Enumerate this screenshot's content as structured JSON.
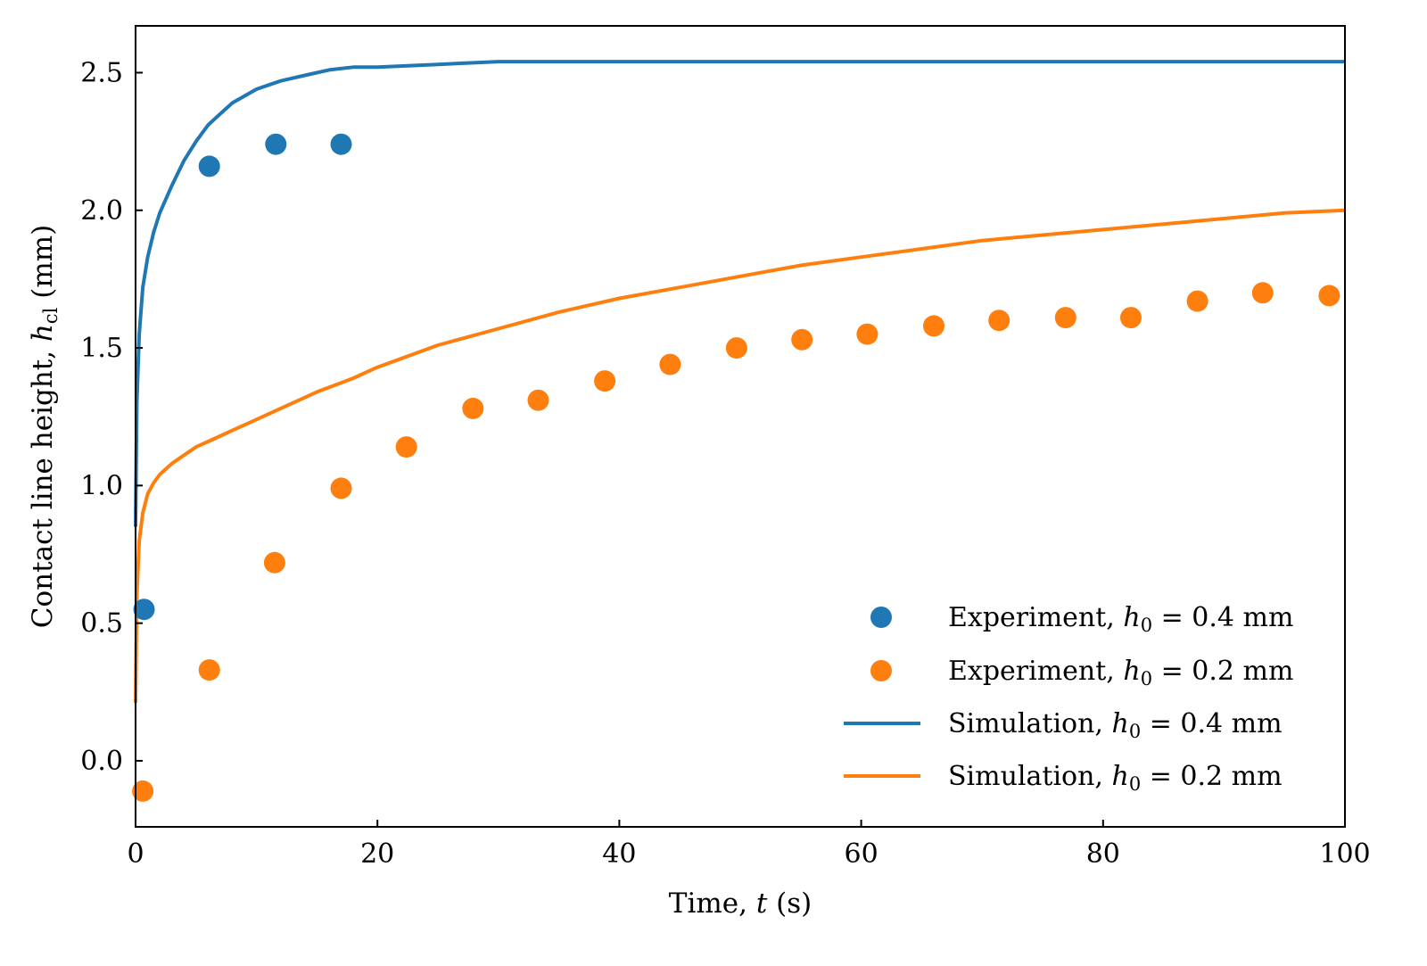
{
  "chart_data": {
    "type": "line",
    "xlabel": {
      "prefix": "Time, ",
      "var": "t",
      "suffix": " (s)"
    },
    "ylabel": {
      "prefix": "Contact line height, ",
      "var": "h",
      "sub": "cl",
      "suffix": " (mm)"
    },
    "xlim": [
      0,
      100
    ],
    "ylim": [
      -0.24,
      2.67
    ],
    "xticks": [
      0,
      20,
      40,
      60,
      80,
      100
    ],
    "xtick_labels": [
      "0",
      "20",
      "40",
      "60",
      "80",
      "100"
    ],
    "yticks": [
      0.0,
      0.5,
      1.0,
      1.5,
      2.0,
      2.5
    ],
    "ytick_labels": [
      "0.0",
      "0.5",
      "1.0",
      "1.5",
      "2.0",
      "2.5"
    ],
    "grid": false,
    "legend_position": "lower-right",
    "colors": {
      "blue": "#1f77b4",
      "orange": "#ff7f0e"
    },
    "series": [
      {
        "kind": "scatter",
        "color": "#1f77b4",
        "legend": {
          "prefix": "Experiment, ",
          "var": "h",
          "sub": "0",
          "suffix": " = 0.4 mm"
        },
        "points": [
          [
            0.7,
            0.55
          ],
          [
            6.1,
            2.16
          ],
          [
            11.6,
            2.24
          ],
          [
            17.0,
            2.24
          ]
        ]
      },
      {
        "kind": "scatter",
        "color": "#ff7f0e",
        "legend": {
          "prefix": "Experiment, ",
          "var": "h",
          "sub": "0",
          "suffix": " = 0.2 mm"
        },
        "points": [
          [
            0.6,
            -0.11
          ],
          [
            6.1,
            0.33
          ],
          [
            11.5,
            0.72
          ],
          [
            17.0,
            0.99
          ],
          [
            22.4,
            1.14
          ],
          [
            27.9,
            1.28
          ],
          [
            33.3,
            1.31
          ],
          [
            38.8,
            1.38
          ],
          [
            44.2,
            1.44
          ],
          [
            49.7,
            1.5
          ],
          [
            55.1,
            1.53
          ],
          [
            60.5,
            1.55
          ],
          [
            66.0,
            1.58
          ],
          [
            71.4,
            1.6
          ],
          [
            76.9,
            1.61
          ],
          [
            82.3,
            1.61
          ],
          [
            87.8,
            1.67
          ],
          [
            93.2,
            1.7
          ],
          [
            98.7,
            1.69
          ]
        ]
      },
      {
        "kind": "line",
        "color": "#1f77b4",
        "legend": {
          "prefix": "Simulation, ",
          "var": "h",
          "sub": "0",
          "suffix": " = 0.4 mm"
        },
        "points": [
          [
            0.0,
            0.85
          ],
          [
            0.1,
            1.3
          ],
          [
            0.3,
            1.55
          ],
          [
            0.6,
            1.72
          ],
          [
            1.0,
            1.83
          ],
          [
            1.5,
            1.92
          ],
          [
            2.0,
            1.99
          ],
          [
            3.0,
            2.09
          ],
          [
            4.0,
            2.18
          ],
          [
            5.0,
            2.25
          ],
          [
            6.0,
            2.31
          ],
          [
            7.0,
            2.35
          ],
          [
            8.0,
            2.39
          ],
          [
            10.0,
            2.44
          ],
          [
            12.0,
            2.47
          ],
          [
            14.0,
            2.49
          ],
          [
            16.0,
            2.51
          ],
          [
            18.0,
            2.52
          ],
          [
            20.0,
            2.52
          ],
          [
            25.0,
            2.53
          ],
          [
            30.0,
            2.54
          ],
          [
            40.0,
            2.54
          ],
          [
            60.0,
            2.54
          ],
          [
            80.0,
            2.54
          ],
          [
            100.0,
            2.54
          ]
        ]
      },
      {
        "kind": "line",
        "color": "#ff7f0e",
        "legend": {
          "prefix": "Simulation, ",
          "var": "h",
          "sub": "0",
          "suffix": " = 0.2 mm"
        },
        "points": [
          [
            0.0,
            0.21
          ],
          [
            0.1,
            0.6
          ],
          [
            0.3,
            0.8
          ],
          [
            0.6,
            0.9
          ],
          [
            1.0,
            0.97
          ],
          [
            1.5,
            1.01
          ],
          [
            2.0,
            1.04
          ],
          [
            3.0,
            1.08
          ],
          [
            4.0,
            1.11
          ],
          [
            5.0,
            1.14
          ],
          [
            6.0,
            1.16
          ],
          [
            8.0,
            1.2
          ],
          [
            10.0,
            1.24
          ],
          [
            12.0,
            1.28
          ],
          [
            15.0,
            1.34
          ],
          [
            18.0,
            1.39
          ],
          [
            20.0,
            1.43
          ],
          [
            25.0,
            1.51
          ],
          [
            30.0,
            1.57
          ],
          [
            35.0,
            1.63
          ],
          [
            40.0,
            1.68
          ],
          [
            45.0,
            1.72
          ],
          [
            50.0,
            1.76
          ],
          [
            55.0,
            1.8
          ],
          [
            60.0,
            1.83
          ],
          [
            65.0,
            1.86
          ],
          [
            70.0,
            1.89
          ],
          [
            75.0,
            1.91
          ],
          [
            80.0,
            1.93
          ],
          [
            85.0,
            1.95
          ],
          [
            90.0,
            1.97
          ],
          [
            95.0,
            1.99
          ],
          [
            100.0,
            2.0
          ]
        ]
      }
    ]
  }
}
